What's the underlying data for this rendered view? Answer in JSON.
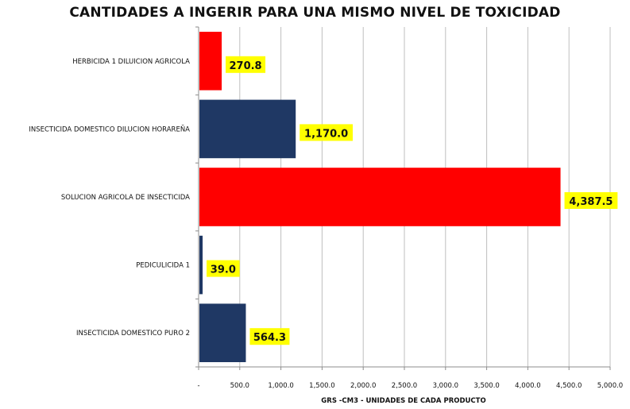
{
  "chart_data": {
    "type": "bar",
    "orientation": "horizontal",
    "title": "CANTIDADES A INGERIR PARA UNA  MISMO NIVEL DE TOXICIDAD",
    "xlabel": "GRS -CM3 - UNIDADES DE CADA PRODUCTO",
    "ylabel": "",
    "categories": [
      "HERBICIDA 1 DILUICION AGRICOLA",
      "INSECTICIDA DOMESTICO DILUCION HORAREÑA",
      "SOLUCION AGRICOLA DE INSECTICIDA",
      "PEDICULICIDA 1",
      "INSECTICIDA DOMESTICO PURO 2"
    ],
    "values": [
      270.8,
      1170.0,
      4387.5,
      39.0,
      564.3
    ],
    "data_labels": [
      "270.8",
      "1,170.0",
      "4,387.5",
      "39.0",
      "564.3"
    ],
    "bar_colors": [
      "#ff0000",
      "#1f3864",
      "#ff0000",
      "#1f3864",
      "#1f3864"
    ],
    "label_background": "#ffff00",
    "xlim": [
      0,
      5000
    ],
    "x_ticks": [
      0,
      500,
      1000,
      1500,
      2000,
      2500,
      3000,
      3500,
      4000,
      4500,
      5000
    ],
    "x_tick_labels": [
      "-",
      "500.0",
      "1,000.0",
      "1,500.0",
      "2,000.0",
      "2,500.0",
      "3,000.0",
      "3,500.0",
      "4,000.0",
      "4,500.0",
      "5,000.0"
    ],
    "grid": "vertical",
    "legend": "none"
  }
}
